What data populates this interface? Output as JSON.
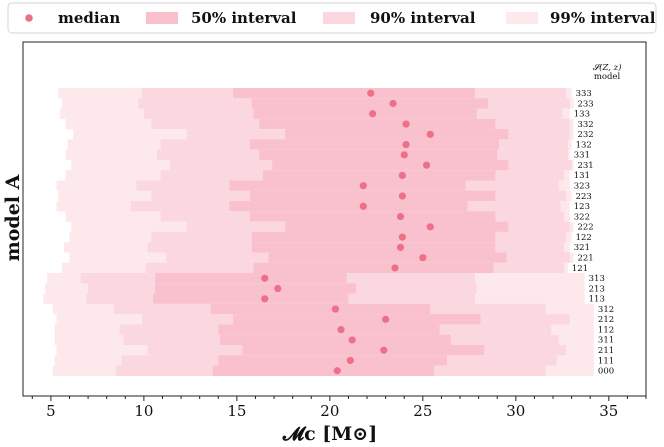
{
  "chart_data": {
    "type": "interval",
    "xlabel": "𝓜c [M⊙]",
    "ylabel": "model A",
    "xlim": [
      3.5,
      37.0
    ],
    "xticks": [
      5,
      10,
      15,
      20,
      25,
      30,
      35
    ],
    "minor_tick_step": 1,
    "legend": {
      "placement": "top",
      "entries": [
        {
          "key": "median",
          "label": "median",
          "color": "#ee7088"
        },
        {
          "key": "i50",
          "label": "50%  interval",
          "color": "#f9c1cd"
        },
        {
          "key": "i90",
          "label": "90%  interval",
          "color": "#fbd8df"
        },
        {
          "key": "i99",
          "label": "99%  interval",
          "color": "#fde8ec"
        }
      ]
    },
    "label_header": [
      "𝓢(Z, z)",
      "model"
    ],
    "rows": [
      {
        "label": "333",
        "median": 22.2,
        "i50": [
          14.8,
          27.8
        ],
        "i90": [
          9.9,
          32.7
        ],
        "i99": [
          5.4,
          33.0
        ]
      },
      {
        "label": "233",
        "median": 23.4,
        "i50": [
          15.8,
          28.5
        ],
        "i90": [
          9.7,
          32.9
        ],
        "i99": [
          5.6,
          33.1
        ]
      },
      {
        "label": "133",
        "median": 22.3,
        "i50": [
          15.9,
          27.9
        ],
        "i90": [
          10.0,
          32.5
        ],
        "i99": [
          5.5,
          32.9
        ]
      },
      {
        "label": "332",
        "median": 24.1,
        "i50": [
          16.2,
          28.9
        ],
        "i90": [
          10.4,
          32.9
        ],
        "i99": [
          5.8,
          33.1
        ]
      },
      {
        "label": "232",
        "median": 25.4,
        "i50": [
          17.6,
          29.6
        ],
        "i90": [
          12.3,
          32.9
        ],
        "i99": [
          6.2,
          33.1
        ]
      },
      {
        "label": "132",
        "median": 24.1,
        "i50": [
          15.7,
          29.1
        ],
        "i90": [
          10.9,
          32.8
        ],
        "i99": [
          5.9,
          33.0
        ]
      },
      {
        "label": "331",
        "median": 24.0,
        "i50": [
          16.2,
          29.0
        ],
        "i90": [
          10.7,
          32.8
        ],
        "i99": [
          5.8,
          32.9
        ]
      },
      {
        "label": "231",
        "median": 25.2,
        "i50": [
          16.9,
          29.6
        ],
        "i90": [
          11.4,
          33.0
        ],
        "i99": [
          6.1,
          33.1
        ]
      },
      {
        "label": "131",
        "median": 23.9,
        "i50": [
          16.4,
          28.9
        ],
        "i90": [
          10.9,
          32.6
        ],
        "i99": [
          5.8,
          32.9
        ]
      },
      {
        "label": "323",
        "median": 21.8,
        "i50": [
          14.6,
          27.3
        ],
        "i90": [
          9.6,
          32.3
        ],
        "i99": [
          5.3,
          32.9
        ]
      },
      {
        "label": "223",
        "median": 23.9,
        "i50": [
          15.7,
          28.9
        ],
        "i90": [
          10.4,
          32.7
        ],
        "i99": [
          5.4,
          33.0
        ]
      },
      {
        "label": "123",
        "median": 21.8,
        "i50": [
          14.6,
          27.4
        ],
        "i90": [
          9.3,
          32.4
        ],
        "i99": [
          5.3,
          32.9
        ]
      },
      {
        "label": "322",
        "median": 23.8,
        "i50": [
          15.7,
          28.9
        ],
        "i90": [
          10.9,
          32.6
        ],
        "i99": [
          5.8,
          32.9
        ]
      },
      {
        "label": "222",
        "median": 25.4,
        "i50": [
          17.6,
          29.6
        ],
        "i90": [
          12.3,
          32.9
        ],
        "i99": [
          6.1,
          33.1
        ]
      },
      {
        "label": "122",
        "median": 23.9,
        "i50": [
          15.8,
          28.9
        ],
        "i90": [
          10.4,
          32.7
        ],
        "i99": [
          6.0,
          33.0
        ]
      },
      {
        "label": "321",
        "median": 23.8,
        "i50": [
          15.8,
          28.9
        ],
        "i90": [
          10.2,
          32.6
        ],
        "i99": [
          5.7,
          32.9
        ]
      },
      {
        "label": "221",
        "median": 25.0,
        "i50": [
          16.7,
          29.5
        ],
        "i90": [
          11.2,
          32.9
        ],
        "i99": [
          6.0,
          33.1
        ]
      },
      {
        "label": "121",
        "median": 23.5,
        "i50": [
          15.9,
          28.8
        ],
        "i90": [
          10.1,
          32.6
        ],
        "i99": [
          5.6,
          32.8
        ]
      },
      {
        "label": "313",
        "median": 16.5,
        "i50": [
          10.6,
          20.9
        ],
        "i90": [
          6.6,
          27.8
        ],
        "i99": [
          4.8,
          33.7
        ]
      },
      {
        "label": "213",
        "median": 17.2,
        "i50": [
          10.6,
          21.4
        ],
        "i90": [
          7.0,
          27.9
        ],
        "i99": [
          4.7,
          33.7
        ]
      },
      {
        "label": "113",
        "median": 16.5,
        "i50": [
          10.5,
          21.0
        ],
        "i90": [
          6.9,
          27.8
        ],
        "i99": [
          4.6,
          33.7
        ]
      },
      {
        "label": "312",
        "median": 20.3,
        "i50": [
          13.6,
          25.4
        ],
        "i90": [
          8.4,
          31.6
        ],
        "i99": [
          5.1,
          34.2
        ]
      },
      {
        "label": "212",
        "median": 23.0,
        "i50": [
          14.8,
          28.1
        ],
        "i90": [
          9.9,
          32.9
        ],
        "i99": [
          5.3,
          34.2
        ]
      },
      {
        "label": "112",
        "median": 20.6,
        "i50": [
          14.0,
          25.9
        ],
        "i90": [
          8.7,
          31.9
        ],
        "i99": [
          5.2,
          34.2
        ]
      },
      {
        "label": "311",
        "median": 21.2,
        "i50": [
          14.1,
          26.5
        ],
        "i90": [
          8.9,
          32.3
        ],
        "i99": [
          5.2,
          34.2
        ]
      },
      {
        "label": "211",
        "median": 22.9,
        "i50": [
          15.3,
          28.3
        ],
        "i90": [
          10.2,
          32.7
        ],
        "i99": [
          5.3,
          34.2
        ]
      },
      {
        "label": "111",
        "median": 21.1,
        "i50": [
          14.0,
          26.3
        ],
        "i90": [
          8.8,
          32.2
        ],
        "i99": [
          5.2,
          34.2
        ]
      },
      {
        "label": "000",
        "median": 20.4,
        "i50": [
          13.7,
          25.6
        ],
        "i90": [
          8.5,
          31.6
        ],
        "i99": [
          5.1,
          34.2
        ]
      }
    ]
  }
}
